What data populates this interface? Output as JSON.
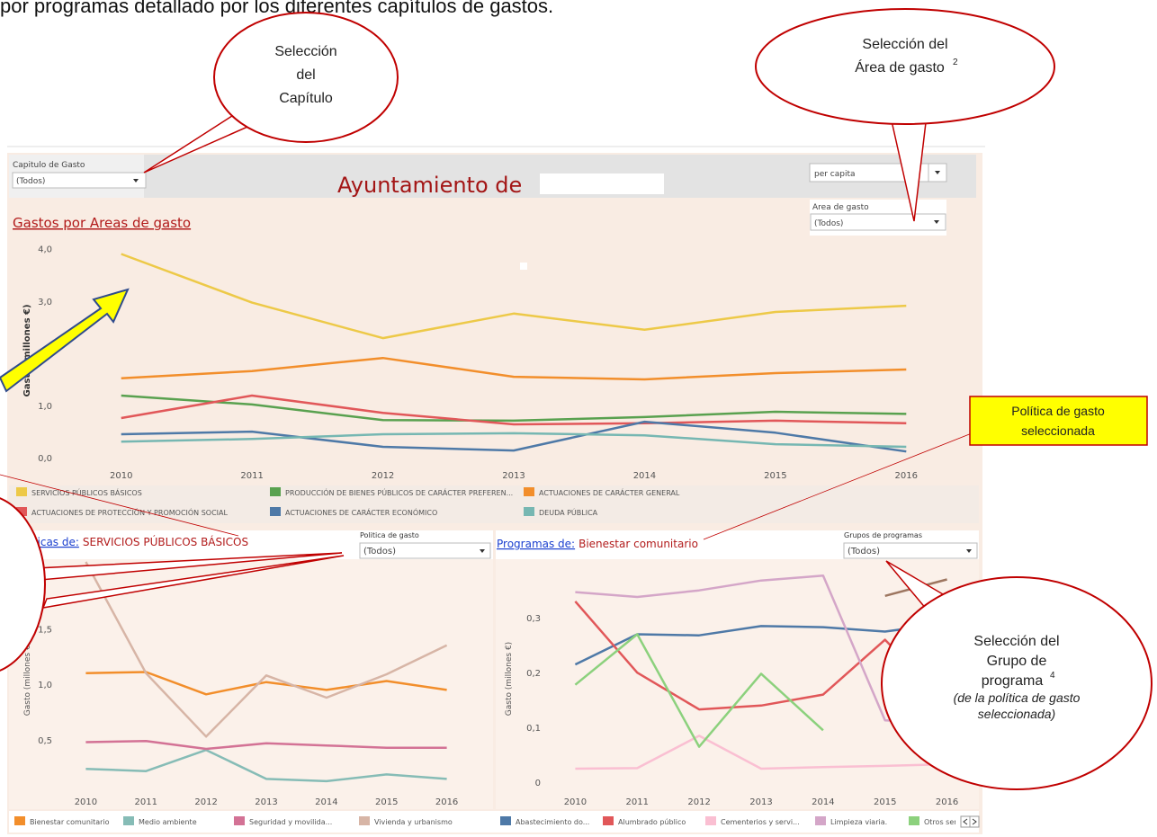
{
  "header_text": "por programas detallado por los diferentes capítulos de gastos.",
  "callouts": {
    "chapter": {
      "lines": [
        "Selección",
        "del",
        "Capítulo"
      ]
    },
    "area": {
      "lines": [
        "Selección del",
        "Área de gasto"
      ],
      "sup": "2"
    },
    "policy": {
      "lines": [
        "Política de gasto",
        "seleccionada"
      ]
    },
    "group": {
      "lines": [
        "Selección del",
        "Grupo de",
        "programa"
      ],
      "sup": "4",
      "italic_lines": [
        "(de la política de gasto",
        "seleccionada)"
      ]
    }
  },
  "dashboard": {
    "chapter_filter": {
      "label": "Capitulo de Gasto",
      "value": "(Todos)"
    },
    "title": "Ayuntamiento de",
    "measure_filter": {
      "value": "per capita"
    },
    "area_filter": {
      "label": "Area de gasto",
      "value": "(Todos)"
    }
  },
  "chart_data": [
    {
      "type": "line",
      "title": "Gastos por Areas de gasto",
      "y_label": "Gasto (millones €)",
      "categories": [
        "2010",
        "2011",
        "2012",
        "2013",
        "2014",
        "2015",
        "2016"
      ],
      "ylim": [
        -0.1,
        4.15
      ],
      "yticks": [
        {
          "value": 0,
          "label": "0,0"
        },
        {
          "value": 1,
          "label": "1,0"
        },
        {
          "value": 2,
          "label": "2,0"
        },
        {
          "value": 3,
          "label": "3,0"
        },
        {
          "value": 4,
          "label": "4,0"
        }
      ],
      "grid": false,
      "series": [
        {
          "name": "SERVICIOS PÚBLICOS BÁSICOS",
          "color": "#edc948",
          "values": [
            3.9,
            2.97,
            2.29,
            2.76,
            2.45,
            2.79,
            2.91
          ]
        },
        {
          "name": "PRODUCCIÓN DE BIENES PÚBLICOS DE CARÁCTER PREFEREN...",
          "color": "#59a14f",
          "values": [
            1.19,
            1.02,
            0.72,
            0.71,
            0.78,
            0.88,
            0.84
          ]
        },
        {
          "name": "ACTUACIONES DE CARÁCTER GENERAL",
          "color": "#f28e2b",
          "values": [
            1.52,
            1.66,
            1.91,
            1.55,
            1.5,
            1.62,
            1.69
          ]
        },
        {
          "name": "ACTUACIONES DE PROTECCIÓN Y PROMOCIÓN SOCIAL",
          "color": "#e15759",
          "values": [
            0.76,
            1.19,
            0.86,
            0.64,
            0.66,
            0.71,
            0.66
          ]
        },
        {
          "name": "ACTUACIONES DE CARÁCTER ECONÓMICO",
          "color": "#4e79a7",
          "values": [
            0.45,
            0.5,
            0.21,
            0.14,
            0.69,
            0.48,
            0.12
          ]
        },
        {
          "name": "DEUDA PÚBLICA",
          "color": "#76b7b2",
          "values": [
            0.31,
            0.36,
            0.45,
            0.47,
            0.43,
            0.26,
            0.21
          ]
        }
      ]
    },
    {
      "type": "line",
      "title_prefix": "Politicas de:",
      "title": "SERVICIOS PÚBLICOS BÁSICOS",
      "filter_label": "Politica de gasto",
      "filter_value": "(Todos)",
      "y_label": "Gasto (millones €)",
      "categories": [
        "2010",
        "2011",
        "2012",
        "2013",
        "2014",
        "2015",
        "2016"
      ],
      "ylim": [
        0.04,
        2.1
      ],
      "yticks": [
        {
          "value": 0.5,
          "label": "0,5"
        },
        {
          "value": 1,
          "label": "1,0"
        },
        {
          "value": 1.5,
          "label": "1,5"
        },
        {
          "value": 2,
          "label": "2,0"
        }
      ],
      "grid": false,
      "series": [
        {
          "name": "Bienestar comunitario",
          "color": "#f28e2b",
          "values": [
            1.1,
            1.11,
            0.91,
            1.02,
            0.95,
            1.03,
            0.95
          ]
        },
        {
          "name": "Medio ambiente",
          "color": "#86bcb6",
          "values": [
            0.24,
            0.22,
            0.41,
            0.15,
            0.13,
            0.19,
            0.15
          ]
        },
        {
          "name": "Seguridad y movilida...",
          "color": "#d37295",
          "values": [
            0.48,
            0.49,
            0.42,
            0.47,
            0.45,
            0.43,
            0.43
          ]
        },
        {
          "name": "Vivienda y urbanismo",
          "color": "#d7b5a6",
          "values": [
            2.1,
            1.1,
            0.53,
            1.08,
            0.88,
            1.09,
            1.35
          ]
        }
      ]
    },
    {
      "type": "line",
      "title_prefix": "Programas de:",
      "title": "Bienestar comunitario",
      "filter_label": "Grupos de programas",
      "filter_value": "(Todos)",
      "y_label": "Gasto (millones €)",
      "categories": [
        "2010",
        "2011",
        "2012",
        "2013",
        "2014",
        "2015",
        "2016"
      ],
      "ylim": [
        -0.016,
        0.402
      ],
      "yticks": [
        0,
        {
          "value": 0.1,
          "label": "0,1"
        },
        {
          "value": 0.2,
          "label": "0,2"
        },
        {
          "value": 0.3,
          "label": "0,3"
        }
      ],
      "grid": false,
      "series": [
        {
          "name": "Abastecimiento do...",
          "color": "#4e79a7",
          "values": [
            0.215,
            0.27,
            0.268,
            0.285,
            0.283,
            0.275,
            0.29
          ]
        },
        {
          "name": "Alumbrado público",
          "color": "#e15759",
          "values": [
            0.33,
            0.2,
            0.133,
            0.14,
            0.16,
            0.26,
            0.145
          ]
        },
        {
          "name": "Cementerios y servi...",
          "color": "#fabfd2",
          "values": [
            0.025,
            0.026,
            0.085,
            0.025,
            0.028,
            0.03,
            0.033
          ]
        },
        {
          "name": "Limpieza viaria.",
          "color": "#d4a6c8",
          "values": [
            0.347,
            0.338,
            0.35,
            0.368,
            0.377,
            0.113,
            0.108
          ]
        },
        {
          "name": "Otros ser",
          "color": "#8cd17d",
          "values": [
            0.178,
            0.27,
            0.065,
            0.198,
            0.095,
            null,
            null
          ]
        },
        {
          "color": "#9d7660",
          "values": [
            null,
            null,
            null,
            null,
            null,
            0.34,
            0.37
          ]
        }
      ]
    }
  ]
}
